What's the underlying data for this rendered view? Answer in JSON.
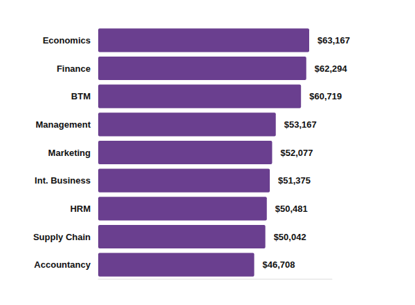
{
  "chart_data": {
    "type": "bar",
    "orientation": "horizontal",
    "categories": [
      "Economics",
      "Finance",
      "BTM",
      "Management",
      "Marketing",
      "Int. Business",
      "HRM",
      "Supply Chain",
      "Accountancy"
    ],
    "values": [
      63167,
      62294,
      60719,
      53167,
      52077,
      51375,
      50481,
      50042,
      46708
    ],
    "value_labels": [
      "$63,167",
      "$62,294",
      "$60,719",
      "$53,167",
      "$52,077",
      "$51,375",
      "$50,481",
      "$50,042",
      "$46,708"
    ],
    "color": "#6a3f8f",
    "xlim": [
      0,
      70000
    ],
    "data_labels": true,
    "tick_labels": "y",
    "grid": false
  }
}
